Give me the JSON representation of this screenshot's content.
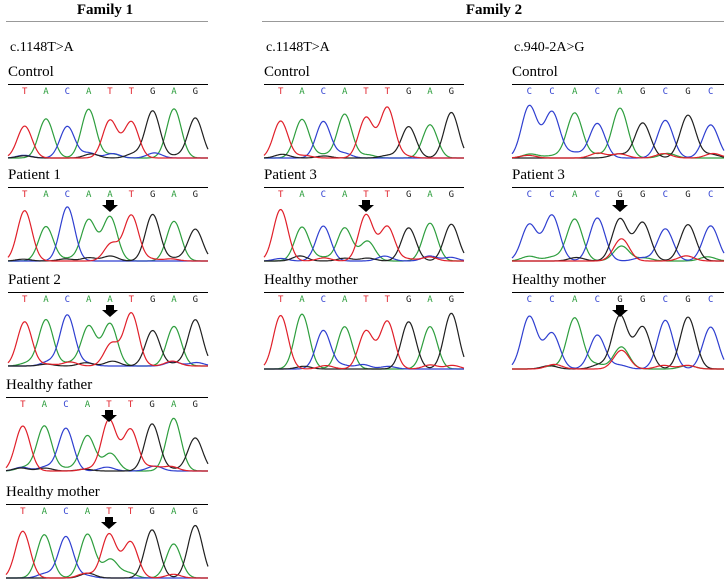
{
  "family1": {
    "title": "Family 1",
    "mutation": "c.1148T>A",
    "panels": [
      {
        "label": "Control",
        "bases": [
          "T",
          "A",
          "C",
          "A",
          "T",
          "T",
          "G",
          "A",
          "G"
        ],
        "arrow": false
      },
      {
        "label": "Patient 1",
        "bases": [
          "T",
          "A",
          "C",
          "A",
          "A",
          "T",
          "G",
          "A",
          "G"
        ],
        "arrow": true
      },
      {
        "label": "Patient 2",
        "bases": [
          "T",
          "A",
          "C",
          "A",
          "A",
          "T",
          "G",
          "A",
          "G"
        ],
        "arrow": true
      },
      {
        "label": "Healthy father",
        "bases": [
          "T",
          "A",
          "C",
          "A",
          "T",
          "T",
          "G",
          "A",
          "G"
        ],
        "arrow": true
      },
      {
        "label": "Healthy mother",
        "bases": [
          "T",
          "A",
          "C",
          "A",
          "T",
          "T",
          "G",
          "A",
          "G"
        ],
        "arrow": true
      }
    ]
  },
  "family2": {
    "title": "Family 2",
    "columns": [
      {
        "mutation": "c.1148T>A",
        "panels": [
          {
            "label": "Control",
            "bases": [
              "T",
              "A",
              "C",
              "A",
              "T",
              "T",
              "G",
              "A",
              "G"
            ],
            "arrow": false
          },
          {
            "label": "Patient 3",
            "bases": [
              "T",
              "A",
              "C",
              "A",
              "T",
              "T",
              "G",
              "A",
              "G"
            ],
            "arrow": true
          },
          {
            "label": "Healthy mother",
            "bases": [
              "T",
              "A",
              "C",
              "A",
              "T",
              "T",
              "G",
              "A",
              "G"
            ],
            "arrow": false
          }
        ]
      },
      {
        "mutation": "c.940-2A>G",
        "panels": [
          {
            "label": "Control",
            "bases": [
              "C",
              "C",
              "A",
              "C",
              "A",
              "G",
              "C",
              "G",
              "C"
            ],
            "arrow": false
          },
          {
            "label": "Patient 3",
            "bases": [
              "C",
              "C",
              "A",
              "C",
              "G",
              "G",
              "C",
              "G",
              "C"
            ],
            "arrow": true
          },
          {
            "label": "Healthy mother",
            "bases": [
              "C",
              "C",
              "A",
              "C",
              "G",
              "G",
              "C",
              "G",
              "C"
            ],
            "arrow": true
          }
        ]
      }
    ]
  },
  "base_colors": {
    "A": "#2e9e3e",
    "C": "#2f3fd0",
    "G": "#202020",
    "T": "#e0202a"
  }
}
